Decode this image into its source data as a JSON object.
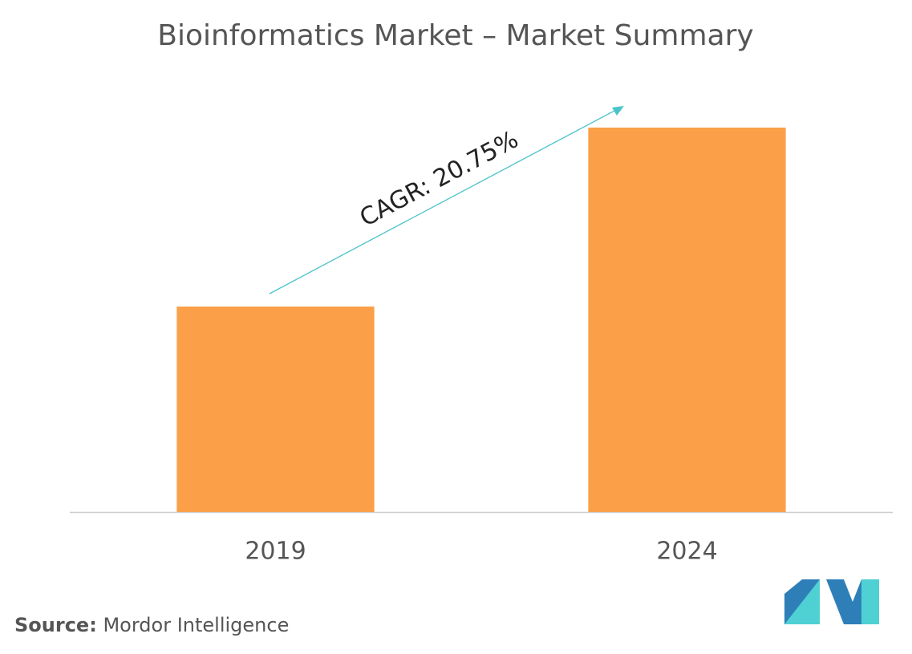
{
  "chart_data": {
    "type": "bar",
    "title": "Bioinformatics Market – Market Summary",
    "categories": [
      "2019",
      "2024"
    ],
    "values": [
      256,
      479
    ],
    "color": "#fb9f48",
    "annotation": "CAGR: 20.75%",
    "source_label": "Source:",
    "source": "Mordor Intelligence"
  }
}
